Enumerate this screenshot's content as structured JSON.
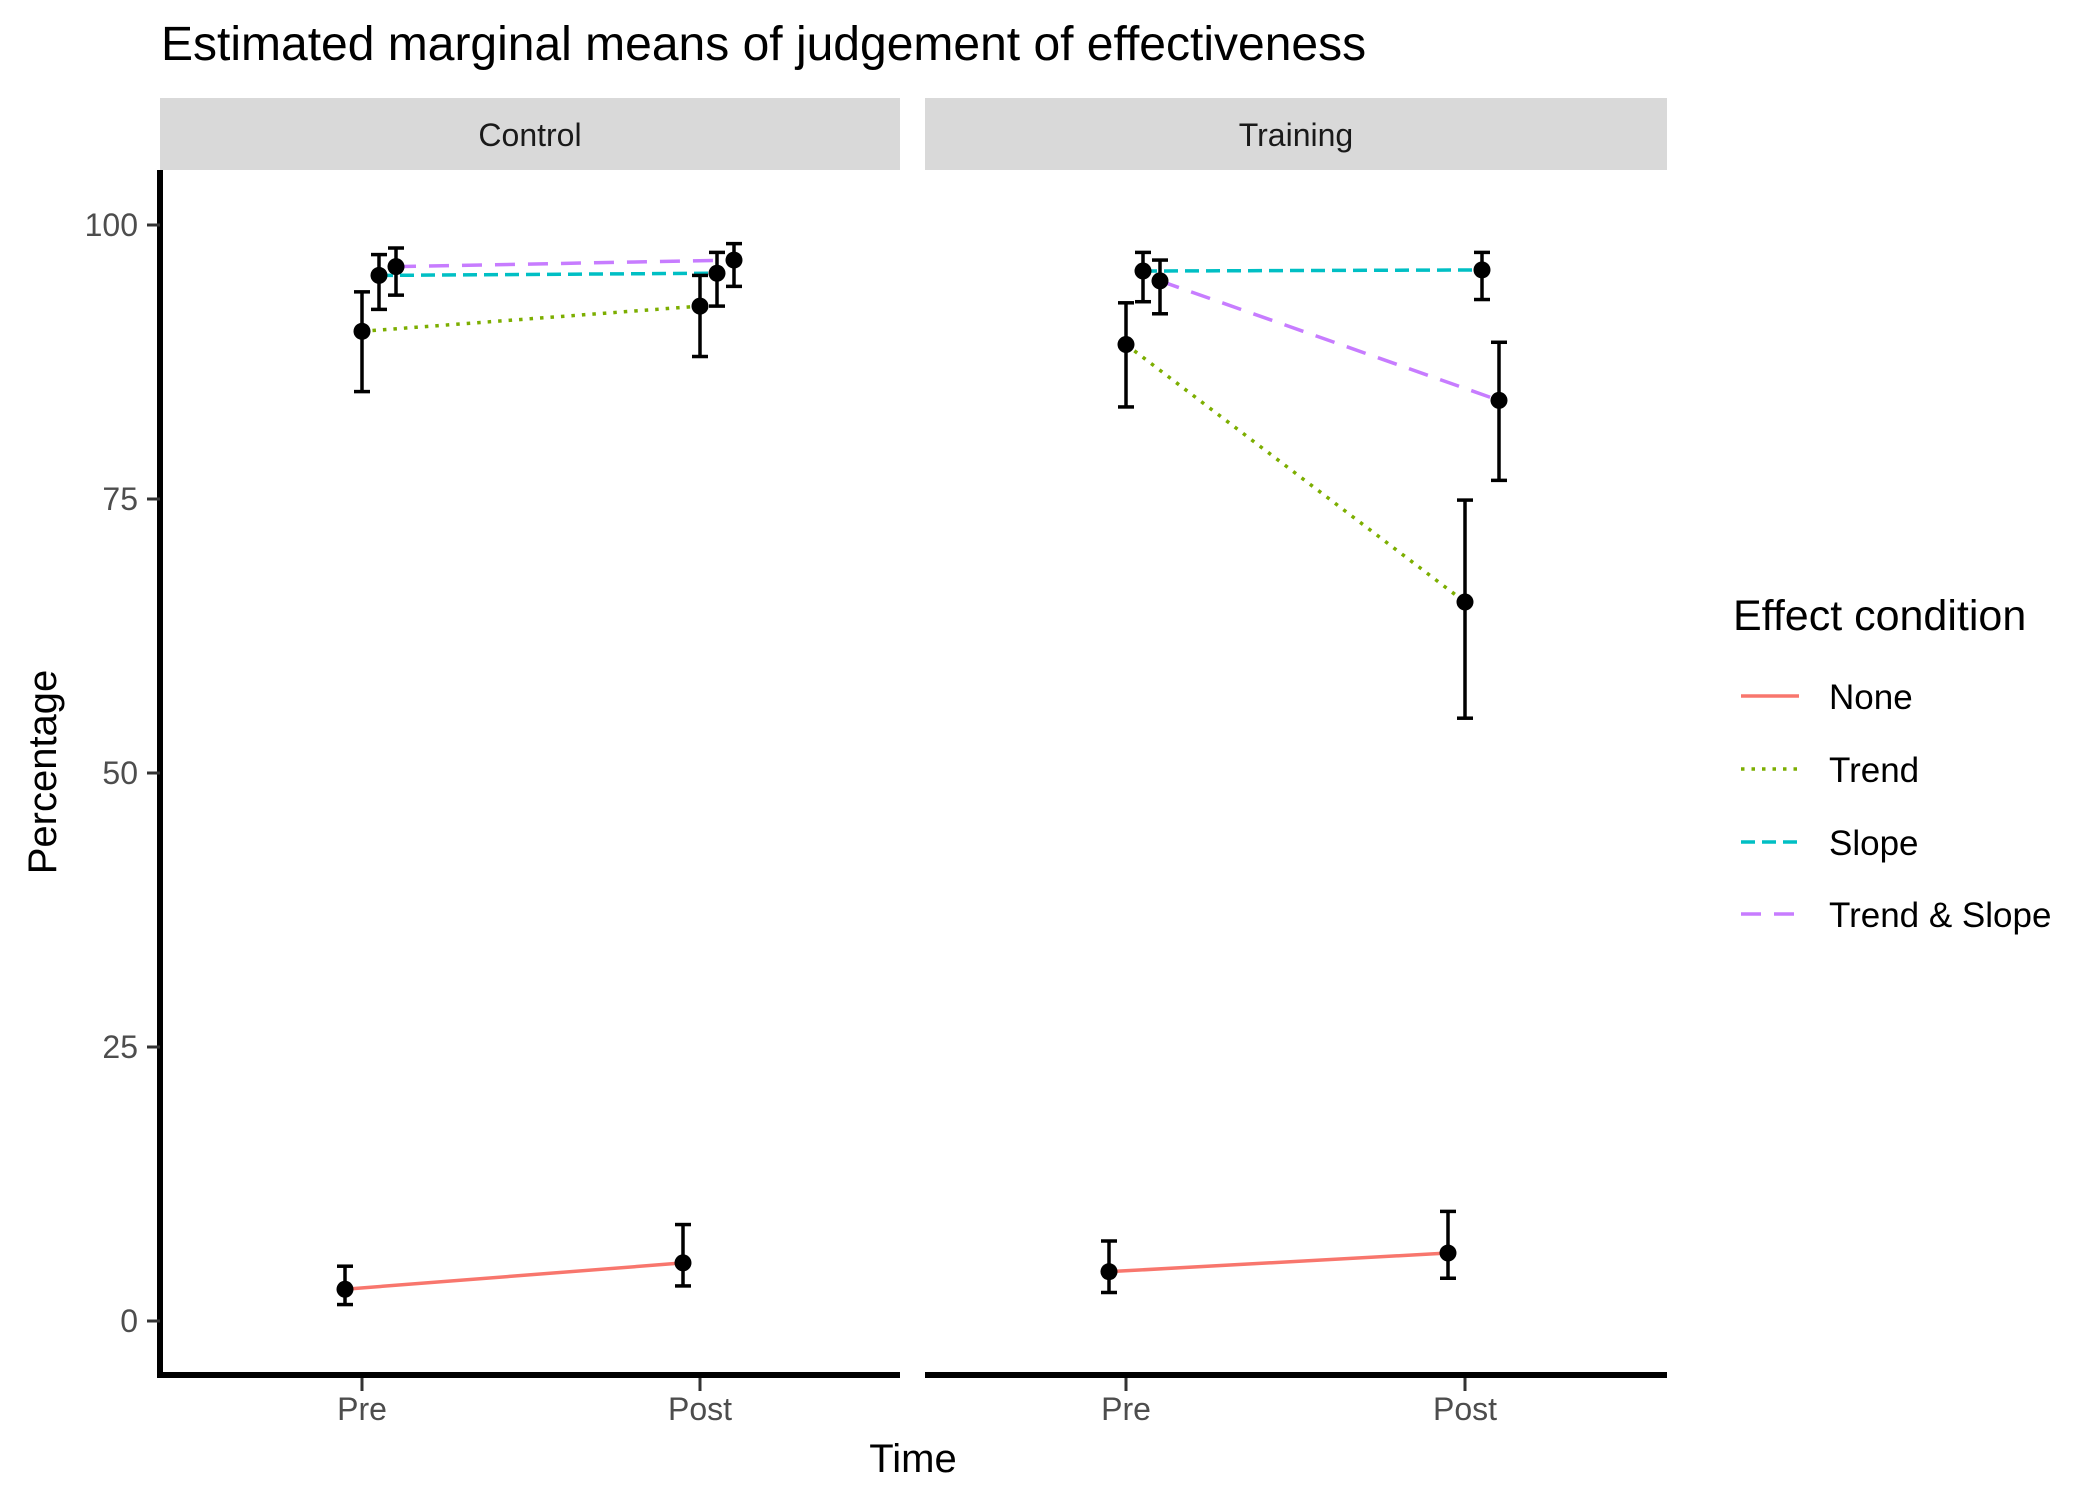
{
  "chart_data": {
    "type": "line",
    "title": "Estimated marginal means of judgement of effectiveness",
    "xlabel": "Time",
    "ylabel": "Percentage",
    "ylim": [
      -4,
      105
    ],
    "yticks": [
      0,
      25,
      50,
      75,
      100
    ],
    "categories": [
      "Pre",
      "Post"
    ],
    "grid": false,
    "legend": {
      "title": "Effect condition",
      "placement": "right",
      "entries": [
        {
          "name": "None",
          "color": "#F8766D",
          "dash": "solid"
        },
        {
          "name": "Trend",
          "color": "#7CAE00",
          "dash": "dotted"
        },
        {
          "name": "Slope",
          "color": "#00BFC4",
          "dash": "dashed"
        },
        {
          "name": "Trend & Slope",
          "color": "#C77CFF",
          "dash": "longdash"
        }
      ]
    },
    "panels": [
      {
        "name": "Control",
        "series": [
          {
            "name": "None",
            "values": [
              2.9,
              5.3
            ],
            "lower": [
              1.5,
              3.2
            ],
            "upper": [
              5.0,
              8.8
            ]
          },
          {
            "name": "Trend",
            "values": [
              90.3,
              92.6
            ],
            "lower": [
              84.8,
              88.0
            ],
            "upper": [
              93.9,
              95.4
            ]
          },
          {
            "name": "Slope",
            "values": [
              95.4,
              95.6
            ],
            "lower": [
              92.3,
              92.6
            ],
            "upper": [
              97.3,
              97.5
            ]
          },
          {
            "name": "Trend & Slope",
            "values": [
              96.2,
              96.8
            ],
            "lower": [
              93.6,
              94.4
            ],
            "upper": [
              97.9,
              98.3
            ]
          }
        ]
      },
      {
        "name": "Training",
        "series": [
          {
            "name": "None",
            "values": [
              4.5,
              6.2
            ],
            "lower": [
              2.6,
              3.9
            ],
            "upper": [
              7.3,
              10.0
            ]
          },
          {
            "name": "Trend",
            "values": [
              89.1,
              65.6
            ],
            "lower": [
              83.4,
              55.0
            ],
            "upper": [
              92.9,
              74.9
            ]
          },
          {
            "name": "Slope",
            "values": [
              95.8,
              95.9
            ],
            "lower": [
              93.0,
              93.2
            ],
            "upper": [
              97.5,
              97.5
            ]
          },
          {
            "name": "Trend & Slope",
            "values": [
              94.9,
              84.0
            ],
            "lower": [
              91.9,
              76.7
            ],
            "upper": [
              96.8,
              89.3
            ]
          }
        ]
      }
    ]
  }
}
